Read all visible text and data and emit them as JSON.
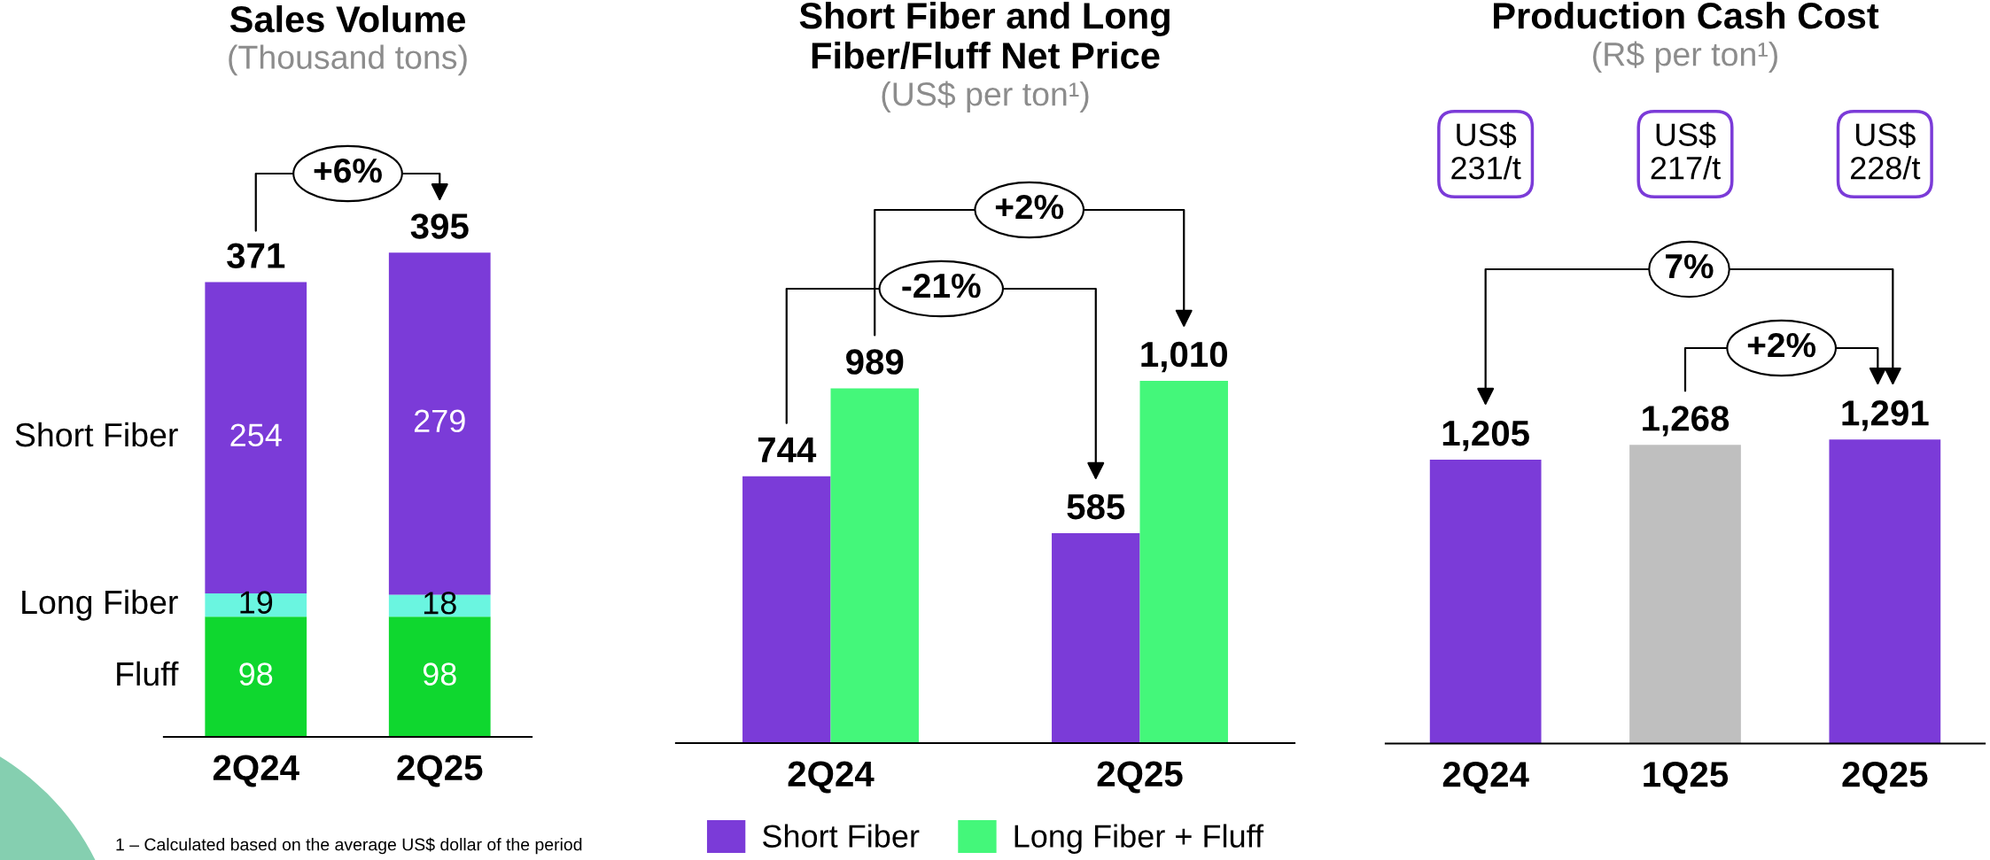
{
  "chart_data": [
    {
      "type": "bar",
      "title": "Sales Volume",
      "subtitle": "(Thousand tons)",
      "categories": [
        "2Q24",
        "2Q25"
      ],
      "stacked": true,
      "series": [
        {
          "name": "Fluff",
          "color": "#0fd72f",
          "values": [
            98,
            98
          ]
        },
        {
          "name": "Long Fiber",
          "color": "#6af5e0",
          "values": [
            19,
            18
          ]
        },
        {
          "name": "Short Fiber",
          "color": "#7b3bd8",
          "values": [
            254,
            279
          ]
        }
      ],
      "data_labels": true,
      "totals": [
        "371",
        "395"
      ],
      "tick_labels": "x",
      "annotations": [
        "+6%",
        "1 – Calculated based on the average US$ dollar of the period"
      ]
    },
    {
      "type": "bar",
      "title": "Short Fiber and Long\nFiber/Fluff Net Price",
      "subtitle": "(US$ per ton¹)",
      "categories": [
        "2Q24",
        "2Q25"
      ],
      "series": [
        {
          "name": "Short Fiber",
          "color": "#7b3bd8",
          "values": [
            744,
            585
          ],
          "value_labels": [
            "744",
            "585"
          ]
        },
        {
          "name": "Long Fiber + Fluff",
          "color": "#44f77a",
          "values": [
            989,
            1010
          ],
          "value_labels": [
            "989",
            "1,010"
          ]
        }
      ],
      "tick_labels": "x",
      "legend": "bottom",
      "annotations": [
        "+2%",
        "-21%"
      ]
    },
    {
      "type": "bar",
      "title": "Production Cash Cost",
      "subtitle": "(R$ per ton¹)",
      "categories": [
        "2Q24",
        "1Q25",
        "2Q25"
      ],
      "values": [
        1205,
        1268,
        1291
      ],
      "colors": [
        "#7b3bd8",
        "#bfbfbf",
        "#7b3bd8"
      ],
      "value_labels": [
        "1,205",
        "1,268",
        "1,291"
      ],
      "tick_labels": "x",
      "annotations": [
        "US$\n231/t",
        "US$\n217/t",
        "US$\n228/t",
        "7%",
        "+2%"
      ]
    }
  ]
}
